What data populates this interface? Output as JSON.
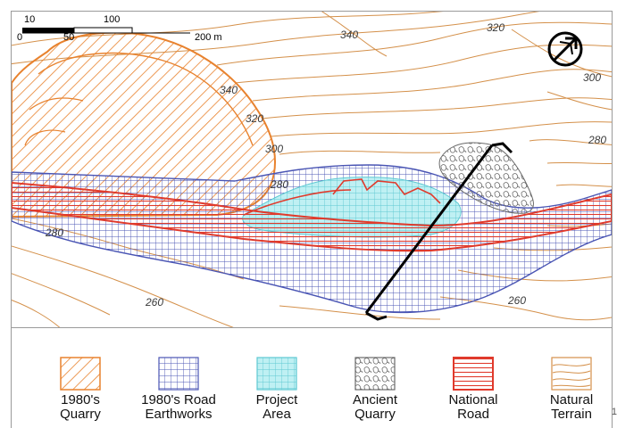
{
  "scale_bar": {
    "label_10": "10",
    "label_100": "100",
    "label_0": "0",
    "label_50": "50",
    "label_200": "200 m"
  },
  "north_arrow_icon": "north-arrow-icon",
  "contour_labels": {
    "c340_top": "340",
    "c320_top": "320",
    "c300_right": "300",
    "c280_right": "280",
    "c340_quarry": "340",
    "c320_quarry": "320",
    "c300_quarry": "300",
    "c280_center": "280",
    "c280_left": "280",
    "c260_left": "260",
    "c260_right": "260"
  },
  "colors": {
    "quarry_1980": "#e8822e",
    "road_earthworks_1980": "#4a55b4",
    "project_area": "#5ec8d2",
    "ancient_quarry": "#7a7a7a",
    "national_road": "#e03a2c",
    "natural_terrain": "#d4904a",
    "section_line": "#000000"
  },
  "legend": {
    "items": [
      {
        "label": "1980's\nQuarry",
        "icon": "quarry-hatch-swatch"
      },
      {
        "label": "1980's Road\nEarthworks",
        "icon": "grid-swatch"
      },
      {
        "label": "Project\nArea",
        "icon": "project-grid-swatch"
      },
      {
        "label": "Ancient\nQuarry",
        "icon": "rock-outline-swatch"
      },
      {
        "label": "National\nRoad",
        "icon": "road-lines-swatch"
      },
      {
        "label": "Natural\nTerrain",
        "icon": "contour-swatch"
      }
    ]
  },
  "page_mark": "1"
}
